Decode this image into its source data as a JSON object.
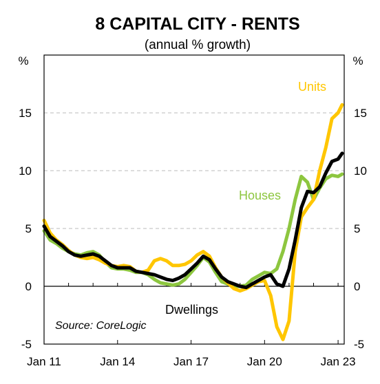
{
  "chart_data": {
    "type": "line",
    "title": "8 CAPITAL CITY - RENTS",
    "subtitle": "(annual % growth)",
    "y_unit_left": "%",
    "y_unit_right": "%",
    "ylim": [
      -5,
      20
    ],
    "yticks": [
      "-5",
      "0",
      "5",
      "10",
      "15"
    ],
    "xlim": [
      "2011-01",
      "2023-04"
    ],
    "xticks": [
      {
        "label": "Jan 11",
        "date": "2011-01"
      },
      {
        "label": "Jan 14",
        "date": "2014-01"
      },
      {
        "label": "Jan 17",
        "date": "2017-01"
      },
      {
        "label": "Jan 20",
        "date": "2020-01"
      },
      {
        "label": "Jan 23",
        "date": "2023-01"
      }
    ],
    "grid": "horizontal dashed",
    "annotations": {
      "units": "Units",
      "houses": "Houses",
      "dwellings": "Dwellings",
      "source": "Source: CoreLogic"
    },
    "colors": {
      "dwellings": "#000000",
      "houses": "#8DC63F",
      "units": "#FFC600",
      "grid": "#bbbbbb"
    },
    "series": [
      {
        "name": "Dwellings",
        "x": [
          "2011-01",
          "2011-04",
          "2011-07",
          "2011-10",
          "2012-01",
          "2012-04",
          "2012-07",
          "2012-10",
          "2013-01",
          "2013-04",
          "2013-07",
          "2013-10",
          "2014-01",
          "2014-04",
          "2014-07",
          "2014-10",
          "2015-01",
          "2015-04",
          "2015-07",
          "2015-10",
          "2016-01",
          "2016-04",
          "2016-07",
          "2016-10",
          "2017-01",
          "2017-04",
          "2017-07",
          "2017-10",
          "2018-01",
          "2018-04",
          "2018-07",
          "2018-10",
          "2019-01",
          "2019-04",
          "2019-07",
          "2019-10",
          "2020-01",
          "2020-04",
          "2020-07",
          "2020-10",
          "2021-01",
          "2021-04",
          "2021-07",
          "2021-10",
          "2022-01",
          "2022-04",
          "2022-07",
          "2022-10",
          "2023-01",
          "2023-03"
        ],
        "values": [
          5.2,
          4.3,
          3.9,
          3.5,
          3.0,
          2.7,
          2.6,
          2.7,
          2.8,
          2.6,
          2.2,
          1.8,
          1.6,
          1.6,
          1.6,
          1.3,
          1.2,
          1.1,
          1.0,
          0.8,
          0.6,
          0.5,
          0.7,
          1.0,
          1.5,
          2.0,
          2.6,
          2.3,
          1.5,
          0.8,
          0.4,
          0.2,
          0.0,
          -0.1,
          0.2,
          0.5,
          0.8,
          1.0,
          0.2,
          0.0,
          1.5,
          4.0,
          6.8,
          8.2,
          8.1,
          8.6,
          9.8,
          10.8,
          11.0,
          11.5
        ]
      },
      {
        "name": "Houses",
        "x": [
          "2011-01",
          "2011-04",
          "2011-07",
          "2011-10",
          "2012-01",
          "2012-04",
          "2012-07",
          "2012-10",
          "2013-01",
          "2013-04",
          "2013-07",
          "2013-10",
          "2014-01",
          "2014-04",
          "2014-07",
          "2014-10",
          "2015-01",
          "2015-04",
          "2015-07",
          "2015-10",
          "2016-01",
          "2016-04",
          "2016-07",
          "2016-10",
          "2017-01",
          "2017-04",
          "2017-07",
          "2017-10",
          "2018-01",
          "2018-04",
          "2018-07",
          "2018-10",
          "2019-01",
          "2019-04",
          "2019-07",
          "2019-10",
          "2020-01",
          "2020-04",
          "2020-07",
          "2020-10",
          "2021-01",
          "2021-04",
          "2021-07",
          "2021-10",
          "2022-01",
          "2022-04",
          "2022-07",
          "2022-10",
          "2023-01",
          "2023-03"
        ],
        "values": [
          4.8,
          4.0,
          3.7,
          3.3,
          3.0,
          2.8,
          2.7,
          2.9,
          3.0,
          2.7,
          2.1,
          1.6,
          1.5,
          1.5,
          1.4,
          1.2,
          1.2,
          1.0,
          0.6,
          0.3,
          0.2,
          0.1,
          0.2,
          0.6,
          1.2,
          1.8,
          2.5,
          2.1,
          1.2,
          0.4,
          0.2,
          0.0,
          0.0,
          0.1,
          0.6,
          0.9,
          1.2,
          1.1,
          1.5,
          3.0,
          5.0,
          7.5,
          9.5,
          9.0,
          7.5,
          8.5,
          9.3,
          9.6,
          9.5,
          9.7
        ]
      },
      {
        "name": "Units",
        "x": [
          "2011-01",
          "2011-04",
          "2011-07",
          "2011-10",
          "2012-01",
          "2012-04",
          "2012-07",
          "2012-10",
          "2013-01",
          "2013-04",
          "2013-07",
          "2013-10",
          "2014-01",
          "2014-04",
          "2014-07",
          "2014-10",
          "2015-01",
          "2015-04",
          "2015-07",
          "2015-10",
          "2016-01",
          "2016-04",
          "2016-07",
          "2016-10",
          "2017-01",
          "2017-04",
          "2017-07",
          "2017-10",
          "2018-01",
          "2018-04",
          "2018-07",
          "2018-10",
          "2019-01",
          "2019-04",
          "2019-07",
          "2019-10",
          "2020-01",
          "2020-04",
          "2020-07",
          "2020-10",
          "2021-01",
          "2021-04",
          "2021-07",
          "2021-10",
          "2022-01",
          "2022-04",
          "2022-07",
          "2022-10",
          "2023-01",
          "2023-03"
        ],
        "values": [
          5.7,
          4.6,
          4.0,
          3.6,
          3.1,
          2.7,
          2.5,
          2.4,
          2.5,
          2.3,
          2.0,
          1.8,
          1.7,
          1.8,
          1.7,
          1.3,
          1.2,
          1.4,
          2.2,
          2.4,
          2.2,
          1.8,
          1.8,
          1.9,
          2.2,
          2.7,
          3.0,
          2.6,
          1.6,
          0.8,
          0.3,
          -0.2,
          -0.4,
          -0.2,
          0.1,
          0.4,
          0.5,
          -0.8,
          -3.5,
          -4.6,
          -3.0,
          3.0,
          6.0,
          6.8,
          7.5,
          10.0,
          12.0,
          14.5,
          15.0,
          15.7
        ]
      }
    ]
  }
}
